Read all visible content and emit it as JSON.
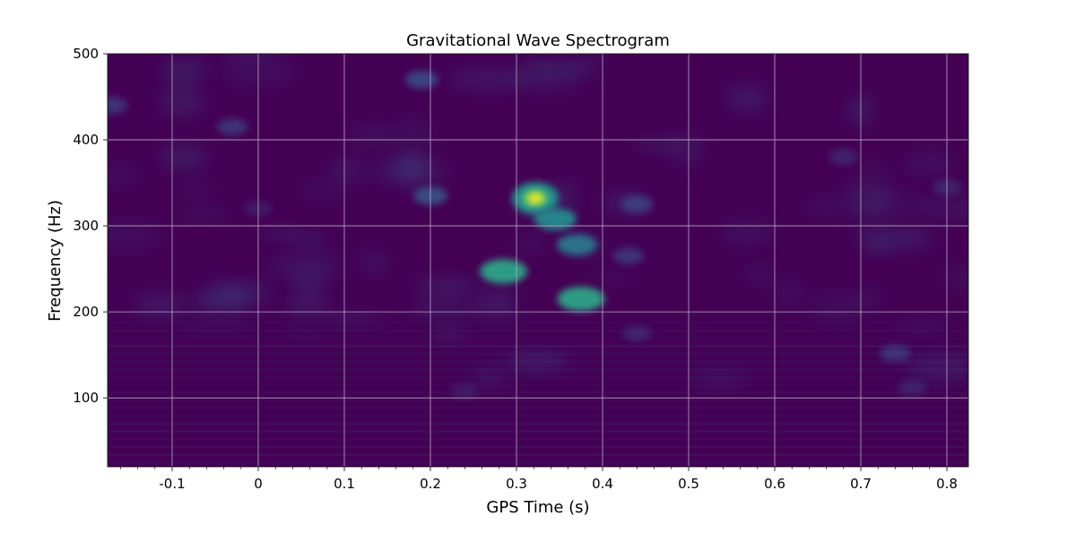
{
  "chart_data": {
    "type": "heatmap",
    "title": "Gravitational Wave Spectrogram",
    "xlabel": "GPS Time (s)",
    "ylabel": "Frequency (Hz)",
    "xlim": [
      -0.175,
      0.825
    ],
    "ylim": [
      20,
      500
    ],
    "x_ticks": [
      -0.1,
      0,
      0.1,
      0.2,
      0.3,
      0.4,
      0.5,
      0.6,
      0.7,
      0.8
    ],
    "x_tick_labels": [
      "-0.1",
      "0",
      "0.1",
      "0.2",
      "0.3",
      "0.4",
      "0.5",
      "0.6",
      "0.7",
      "0.8"
    ],
    "y_ticks": [
      100,
      200,
      300,
      400,
      500
    ],
    "y_tick_labels": [
      "100",
      "200",
      "300",
      "400",
      "500"
    ],
    "grid": true,
    "colormap": "viridis",
    "colors": {
      "background": "#440154",
      "grid": "#b9a9c6",
      "peak": "#fde725"
    },
    "features": [
      {
        "x": 0.322,
        "y": 332,
        "intensity": 1.0
      },
      {
        "x": 0.345,
        "y": 308,
        "intensity": 0.45
      },
      {
        "x": 0.37,
        "y": 278,
        "intensity": 0.4
      },
      {
        "x": 0.285,
        "y": 247,
        "intensity": 0.55
      },
      {
        "x": 0.375,
        "y": 215,
        "intensity": 0.55
      },
      {
        "x": 0.2,
        "y": 335,
        "intensity": 0.28
      },
      {
        "x": 0.19,
        "y": 470,
        "intensity": 0.25
      },
      {
        "x": 0.44,
        "y": 325,
        "intensity": 0.22
      },
      {
        "x": 0.43,
        "y": 265,
        "intensity": 0.2
      },
      {
        "x": -0.03,
        "y": 415,
        "intensity": 0.2
      },
      {
        "x": -0.17,
        "y": 440,
        "intensity": 0.2
      },
      {
        "x": 0.74,
        "y": 152,
        "intensity": 0.2
      },
      {
        "x": 0.76,
        "y": 112,
        "intensity": 0.14
      },
      {
        "x": 0.44,
        "y": 175,
        "intensity": 0.15
      },
      {
        "x": 0.68,
        "y": 380,
        "intensity": 0.15
      },
      {
        "x": 0.8,
        "y": 345,
        "intensity": 0.15
      },
      {
        "x": 0.24,
        "y": 108,
        "intensity": 0.12
      },
      {
        "x": 0.0,
        "y": 320,
        "intensity": 0.12
      }
    ]
  }
}
